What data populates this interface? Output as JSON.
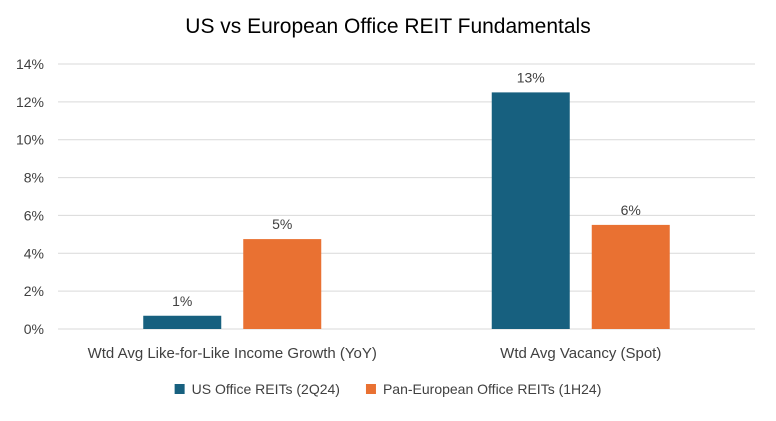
{
  "chart_data": {
    "type": "bar",
    "title": "US vs European Office REIT Fundamentals",
    "categories": [
      "Wtd Avg Like-for-Like Income Growth (YoY)",
      "Wtd Avg Vacancy (Spot)"
    ],
    "series": [
      {
        "name": "US Office REITs (2Q24)",
        "color": "#17607f",
        "values": [
          0.7,
          12.5
        ],
        "labels": [
          "1%",
          "13%"
        ]
      },
      {
        "name": "Pan-European Office REITs (1H24)",
        "color": "#e97132",
        "values": [
          4.75,
          5.5
        ],
        "labels": [
          "5%",
          "6%"
        ]
      }
    ],
    "ylim": [
      0,
      14
    ],
    "yticks": [
      0,
      2,
      4,
      6,
      8,
      10,
      12,
      14
    ],
    "ytick_labels": [
      "0%",
      "2%",
      "4%",
      "6%",
      "8%",
      "10%",
      "12%",
      "14%"
    ],
    "grid": true,
    "legend_position": "bottom",
    "text_color": "#404040",
    "grid_color": "#d9d9d9"
  }
}
